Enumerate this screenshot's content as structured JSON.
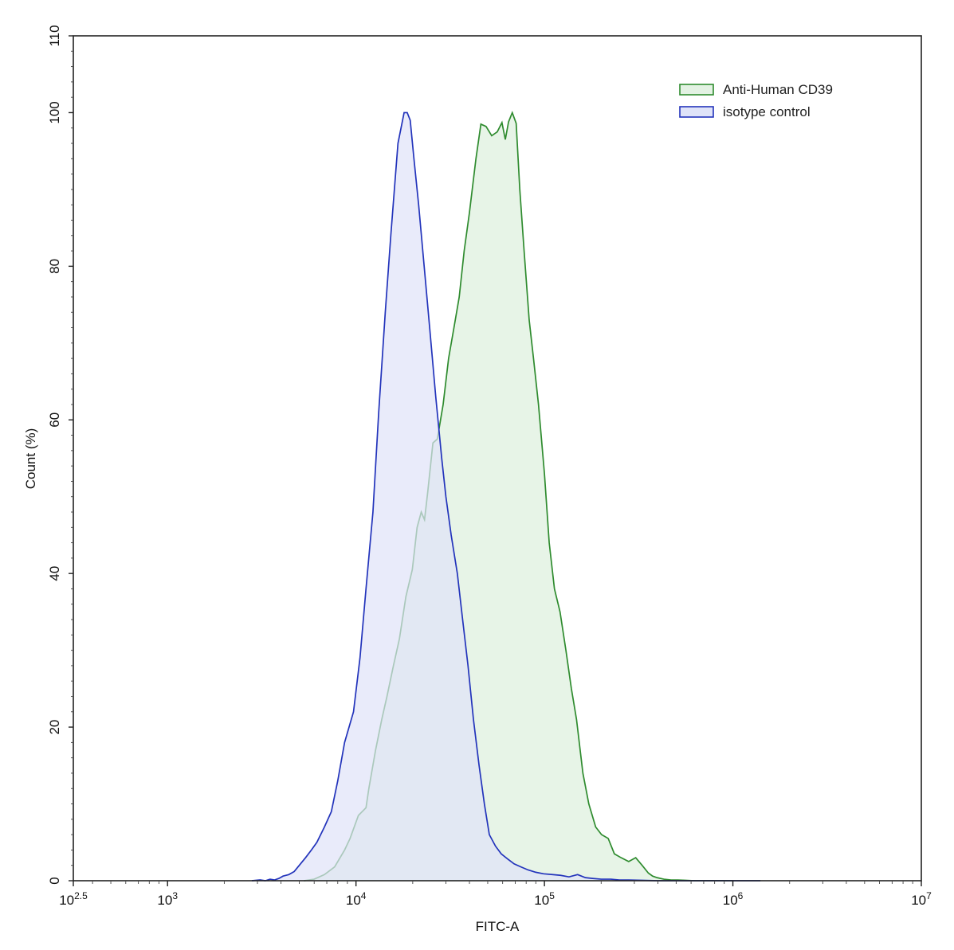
{
  "chart_data": {
    "type": "area",
    "xlabel": "FITC-A",
    "ylabel": "Count  (%)",
    "xscale": "log",
    "xlim": [
      316.2,
      10000000
    ],
    "ylim": [
      0,
      110
    ],
    "x_ticks": [
      {
        "value": 316.2,
        "base": "10",
        "exp": "2.5"
      },
      {
        "value": 1000,
        "base": "10",
        "exp": "3"
      },
      {
        "value": 10000,
        "base": "10",
        "exp": "4"
      },
      {
        "value": 100000,
        "base": "10",
        "exp": "5"
      },
      {
        "value": 1000000,
        "base": "10",
        "exp": "6"
      },
      {
        "value": 10000000,
        "base": "10",
        "exp": "7"
      }
    ],
    "y_ticks": [
      {
        "value": 0,
        "label": "0"
      },
      {
        "value": 20,
        "label": "20"
      },
      {
        "value": 40,
        "label": "40"
      },
      {
        "value": 60,
        "label": "60"
      },
      {
        "value": 80,
        "label": "80"
      },
      {
        "value": 100,
        "label": "100"
      },
      {
        "value": 110,
        "label": "110"
      }
    ],
    "grid": false,
    "legend_position": "top-right",
    "series": [
      {
        "name": "Anti-Human CD39",
        "stroke": "#2e8b2e",
        "fill": "#e3f2e3",
        "x": [
          5300,
          6000,
          6800,
          7700,
          8700,
          9300,
          10300,
          11300,
          11700,
          12700,
          13700,
          14600,
          15800,
          17000,
          18400,
          19900,
          21100,
          22200,
          23100,
          24000,
          25600,
          27000,
          29000,
          31000,
          33100,
          35300,
          37500,
          40000,
          43300,
          46000,
          49000,
          52500,
          56200,
          59500,
          62000,
          64500,
          67500,
          70800,
          74000,
          78000,
          83000,
          87500,
          93000,
          100000,
          106000,
          113000,
          121000,
          130000,
          139000,
          148000,
          160000,
          172000,
          187000,
          201000,
          218000,
          235000,
          255000,
          280000,
          305000,
          330000,
          356000,
          375000,
          396000,
          430000,
          470000,
          510000,
          560000,
          620000,
          700000,
          800000,
          900000,
          1000000
        ],
        "y": [
          0,
          0.2,
          0.8,
          1.8,
          4,
          5.5,
          8.5,
          9.5,
          12,
          17,
          21,
          24,
          28,
          31.5,
          37,
          40.5,
          46,
          48,
          47,
          50.5,
          57,
          57.5,
          62,
          68,
          72,
          76,
          82,
          87,
          94,
          98.5,
          98.2,
          97,
          97.5,
          98.7,
          96.5,
          98.8,
          100,
          98.6,
          90,
          82,
          73,
          68,
          62,
          53,
          44,
          38,
          35,
          30,
          25,
          21,
          14,
          10,
          7,
          6,
          5.5,
          3.5,
          3,
          2.5,
          3,
          2,
          1,
          0.6,
          0.4,
          0.2,
          0.1,
          0.1,
          0.05,
          0,
          0,
          0,
          0,
          0
        ]
      },
      {
        "name": "isotype control",
        "stroke": "#2233bb",
        "fill": "#dfe3f8",
        "x": [
          2800,
          3100,
          3300,
          3500,
          3700,
          3900,
          4100,
          4400,
          4700,
          5000,
          5400,
          5800,
          6200,
          6800,
          7400,
          8000,
          8700,
          9700,
          10500,
          11300,
          12300,
          13200,
          14300,
          15300,
          16700,
          18000,
          18700,
          19400,
          20300,
          21500,
          23000,
          24600,
          26500,
          28500,
          30000,
          32000,
          34500,
          36800,
          39300,
          42000,
          45000,
          48000,
          51000,
          55000,
          59000,
          64000,
          69000,
          75000,
          82000,
          90000,
          99000,
          110000,
          122000,
          135000,
          150000,
          165000,
          180000,
          200000,
          225000,
          250000,
          280000,
          330000,
          400000,
          500000,
          650000,
          800000,
          1000000,
          1200000,
          1400000
        ],
        "y": [
          0,
          0.1,
          0,
          0.2,
          0.1,
          0.3,
          0.6,
          0.8,
          1.2,
          2,
          3,
          4,
          5,
          7,
          9,
          13,
          18,
          22,
          29,
          38,
          48,
          61,
          74,
          84,
          96,
          100,
          100,
          99,
          94,
          88,
          80,
          72,
          63,
          55,
          50,
          45,
          40,
          34,
          28,
          21,
          15,
          10,
          6,
          4.5,
          3.5,
          2.8,
          2.2,
          1.8,
          1.4,
          1.1,
          0.9,
          0.8,
          0.7,
          0.5,
          0.8,
          0.4,
          0.3,
          0.2,
          0.2,
          0.1,
          0.1,
          0.05,
          0,
          0,
          0,
          0,
          0,
          0,
          0
        ]
      }
    ]
  }
}
